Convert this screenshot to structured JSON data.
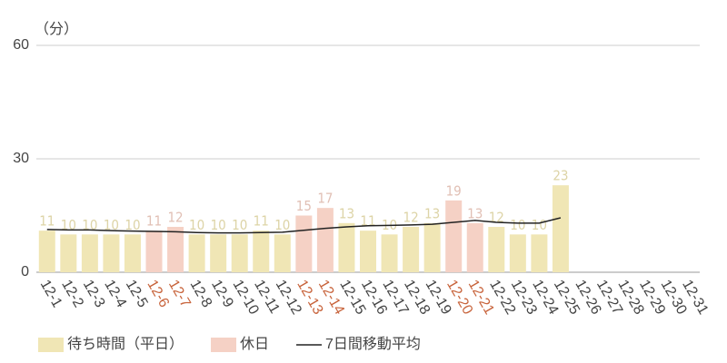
{
  "chart_data": {
    "type": "bar",
    "y_unit_label": "（分）",
    "categories": [
      "12-1",
      "12-2",
      "12-3",
      "12-4",
      "12-5",
      "12-6",
      "12-7",
      "12-8",
      "12-9",
      "12-10",
      "12-11",
      "12-12",
      "12-13",
      "12-14",
      "12-15",
      "12-16",
      "12-17",
      "12-18",
      "12-19",
      "12-20",
      "12-21",
      "12-22",
      "12-23",
      "12-24",
      "12-25",
      "12-26",
      "12-27",
      "12-28",
      "12-29",
      "12-30",
      "12-31"
    ],
    "series": [
      {
        "name": "待ち時間（平日）",
        "color": "#f0e6b5",
        "values": [
          11,
          10,
          10,
          10,
          10,
          null,
          null,
          10,
          10,
          10,
          11,
          10,
          null,
          null,
          13,
          11,
          10,
          12,
          13,
          null,
          null,
          12,
          10,
          10,
          23,
          null,
          null,
          null,
          null,
          null,
          null
        ]
      },
      {
        "name": "休日",
        "color": "#f5d1c5",
        "values": [
          null,
          null,
          null,
          null,
          null,
          11,
          12,
          null,
          null,
          null,
          null,
          null,
          15,
          17,
          null,
          null,
          null,
          null,
          null,
          19,
          13,
          null,
          null,
          null,
          null,
          null,
          null,
          null,
          null,
          null,
          null
        ]
      },
      {
        "name": "7日間移動平均",
        "type": "line",
        "color": "#222222",
        "values": [
          11.3,
          11.2,
          11.2,
          11.0,
          10.9,
          10.8,
          10.7,
          10.5,
          10.4,
          10.4,
          10.5,
          10.6,
          11.1,
          11.6,
          12.0,
          12.3,
          12.4,
          12.5,
          12.7,
          13.2,
          13.7,
          13.2,
          13.0,
          13.0,
          14.4,
          null,
          null,
          null,
          null,
          null,
          null
        ]
      }
    ],
    "holiday_label_color": "#c8643c",
    "ylim": [
      0,
      60
    ],
    "yticks": [
      0,
      30,
      60
    ],
    "grid": true
  }
}
